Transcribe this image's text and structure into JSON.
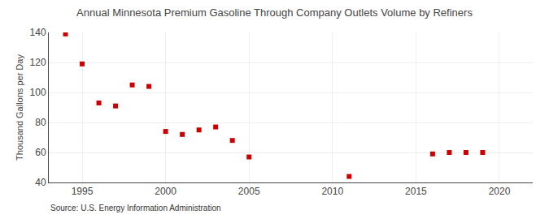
{
  "chart_data": {
    "type": "scatter",
    "title": "Annual Minnesota Premium Gasoline Through Company Outlets Volume by Refiners",
    "ylabel": "Thousand Gallons per Day",
    "annotation": "Source: U.S. Energy Information Administration",
    "x": [
      1994,
      1995,
      1996,
      1997,
      1998,
      1999,
      2000,
      2001,
      2002,
      2003,
      2004,
      2005,
      2011,
      2016,
      2017,
      2018,
      2019
    ],
    "values": [
      139,
      119,
      93,
      91,
      105,
      104,
      74,
      72,
      75,
      77,
      68,
      57,
      44,
      59,
      60,
      60,
      60
    ],
    "color": "#cc0000",
    "marker": "square",
    "xlim": [
      1993,
      2022
    ],
    "ylim": [
      40,
      140
    ],
    "xticks": [
      1995,
      2000,
      2005,
      2010,
      2015,
      2020
    ],
    "yticks": [
      40,
      60,
      80,
      100,
      120,
      140
    ],
    "grid": true
  }
}
